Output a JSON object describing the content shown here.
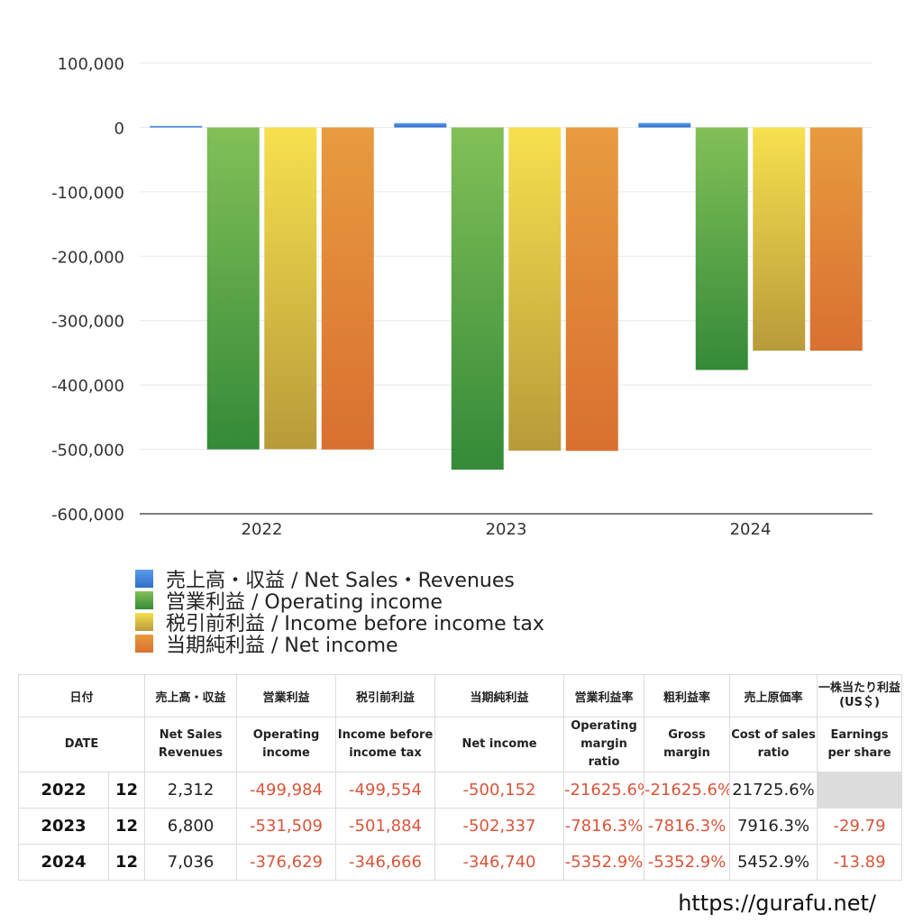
{
  "chart_data": {
    "type": "bar",
    "categories": [
      "2022",
      "2023",
      "2024"
    ],
    "series": [
      {
        "name": "売上高・収益 / Net Sales・Revenues",
        "values": [
          2312,
          6800,
          7036
        ],
        "color_top": "#5b9bea",
        "color_bottom": "#2f6fc9"
      },
      {
        "name": "営業利益 / Operating income",
        "values": [
          -499984,
          -531509,
          -376629
        ],
        "color_top": "#82c057",
        "color_bottom": "#348a38"
      },
      {
        "name": "税引前利益 / Income before income tax",
        "values": [
          -499554,
          -501884,
          -346666
        ],
        "color_top": "#f7e04e",
        "color_bottom": "#b89b3a"
      },
      {
        "name": "当期純利益 / Net income",
        "values": [
          -500152,
          -502337,
          -346740
        ],
        "color_top": "#e89b3f",
        "color_bottom": "#d97030"
      }
    ],
    "yticks": [
      100000,
      0,
      -100000,
      -200000,
      -300000,
      -400000,
      -500000,
      -600000
    ],
    "ytick_labels": [
      "100,000",
      "0",
      "-100,000",
      "-200,000",
      "-300,000",
      "-400,000",
      "-500,000",
      "-600,000"
    ],
    "ylim": [
      -600000,
      100000
    ],
    "grid": true,
    "legend_position": "bottom-left"
  },
  "table": {
    "headers_jp": [
      "日付",
      "売上高・収益",
      "営業利益",
      "税引前利益",
      "当期純利益",
      "営業利益率",
      "粗利益率",
      "売上原価率",
      "一株当たり利益(US＄)"
    ],
    "headers_en": [
      "DATE",
      "Net Sales Revenues",
      "Operating income",
      "Income before income tax",
      "Net income",
      "Operating margin ratio",
      "Gross margin",
      "Cost of sales ratio",
      "Earnings per share"
    ],
    "rows": [
      {
        "year": "2022",
        "month": "12",
        "net_sales": "2,312",
        "operating_income": "-499,984",
        "pretax_income": "-499,554",
        "net_income": "-500,152",
        "operating_margin": "-21625.6%",
        "gross_margin": "-21625.6%",
        "cost_ratio": "21725.6%",
        "eps": ""
      },
      {
        "year": "2023",
        "month": "12",
        "net_sales": "6,800",
        "operating_income": "-531,509",
        "pretax_income": "-501,884",
        "net_income": "-502,337",
        "operating_margin": "-7816.3%",
        "gross_margin": "-7816.3%",
        "cost_ratio": "7916.3%",
        "eps": "-29.79"
      },
      {
        "year": "2024",
        "month": "12",
        "net_sales": "7,036",
        "operating_income": "-376,629",
        "pretax_income": "-346,666",
        "net_income": "-346,740",
        "operating_margin": "-5352.9%",
        "gross_margin": "-5352.9%",
        "cost_ratio": "5452.9%",
        "eps": "-13.89"
      }
    ]
  },
  "site_url": "https://gurafu.net/"
}
